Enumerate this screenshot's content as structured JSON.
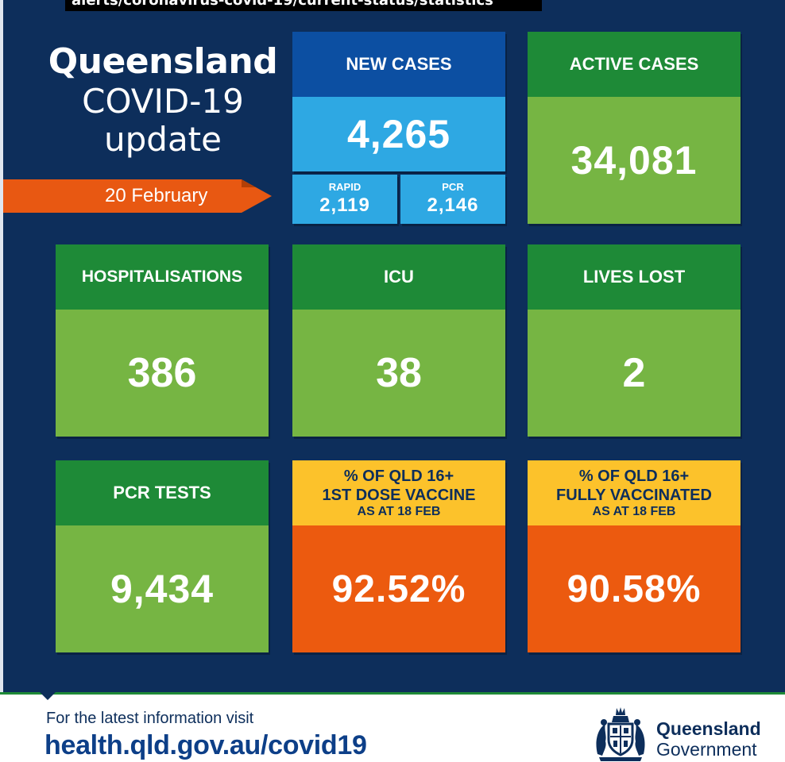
{
  "caption": "alerts/coronavirus-covid-19/current-status/statistics",
  "header": {
    "title_line1": "Queensland",
    "title_line2": "COVID-19",
    "title_line3": "update",
    "date": "20 February"
  },
  "new_cases": {
    "label": "NEW CASES",
    "value": "4,265",
    "rapid_label": "RAPID",
    "rapid_value": "2,119",
    "pcr_label": "PCR",
    "pcr_value": "2,146"
  },
  "active_cases": {
    "label": "ACTIVE CASES",
    "value": "34,081"
  },
  "hospitalisations": {
    "label": "HOSPITALISATIONS",
    "value": "386"
  },
  "icu": {
    "label": "ICU",
    "value": "38"
  },
  "lives_lost": {
    "label": "LIVES LOST",
    "value": "2"
  },
  "pcr_tests": {
    "label": "PCR TESTS",
    "value": "9,434"
  },
  "first_dose": {
    "line1": "% OF QLD 16+",
    "line2": "1ST DOSE VACCINE",
    "line3": "AS AT 18 FEB",
    "value": "92.52%"
  },
  "fully_vaccinated": {
    "line1": "% OF QLD 16+",
    "line2": "FULLY VACCINATED",
    "line3": "AS AT 18 FEB",
    "value": "90.58%"
  },
  "footer": {
    "info_text": "For the latest information visit",
    "url": "health.qld.gov.au/covid19",
    "gov_line1": "Queensland",
    "gov_line2": "Government",
    "crest_icon": "coat-of-arms-icon"
  },
  "colors": {
    "navy": "#0d2e5b",
    "green_dark": "#1e8a37",
    "green_light": "#76b543",
    "blue_dark": "#0c4fa2",
    "blue_light": "#2ea8e3",
    "yellow": "#fcc22b",
    "orange": "#ec5a0f"
  }
}
